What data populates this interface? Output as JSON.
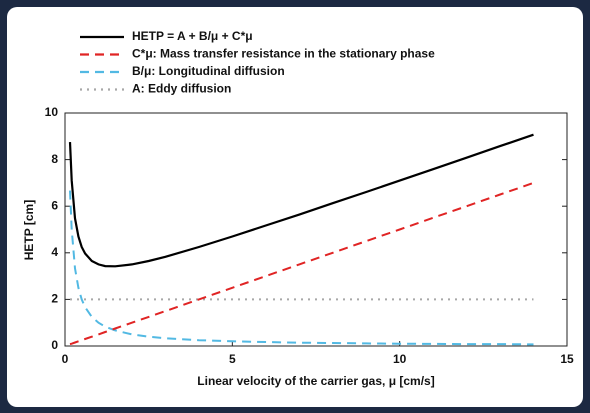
{
  "chart_data": {
    "type": "line",
    "xlabel": "Linear velocity of the carrier gas, μ [cm/s]",
    "ylabel": "HETP [cm]",
    "x": [
      0.15,
      0.2,
      0.3,
      0.4,
      0.5,
      0.6,
      0.8,
      1,
      1.2,
      1.5,
      2,
      2.5,
      3,
      4,
      5,
      6,
      7,
      8,
      9,
      10,
      11,
      12,
      13,
      14
    ],
    "series": [
      {
        "name": "HETP = A + B/μ + C*μ",
        "color": "#000000",
        "dash": "solid",
        "values": [
          8.75,
          7.1,
          5.48,
          4.7,
          4.25,
          3.97,
          3.65,
          3.5,
          3.43,
          3.42,
          3.5,
          3.65,
          3.83,
          4.25,
          4.7,
          5.17,
          5.64,
          6.13,
          6.61,
          7.1,
          7.59,
          8.08,
          8.58,
          9.07
        ]
      },
      {
        "name": "C*μ: Mass transfer resistance in the stationary phase",
        "color": "#e02424",
        "dash": "dashed",
        "values": [
          0.08,
          0.1,
          0.15,
          0.2,
          0.25,
          0.3,
          0.4,
          0.5,
          0.6,
          0.75,
          1,
          1.25,
          1.5,
          2,
          2.5,
          3,
          3.5,
          4,
          4.5,
          5,
          5.5,
          6,
          6.5,
          7
        ]
      },
      {
        "name": "B/μ: Longitudinal diffusion",
        "color": "#52b9e3",
        "dash": "dashed",
        "values": [
          6.67,
          5,
          3.33,
          2.5,
          2,
          1.67,
          1.25,
          1,
          0.83,
          0.67,
          0.5,
          0.4,
          0.33,
          0.25,
          0.2,
          0.17,
          0.14,
          0.13,
          0.11,
          0.1,
          0.09,
          0.08,
          0.08,
          0.07
        ]
      },
      {
        "name": "A: Eddy diffusion",
        "color": "#a8a8a8",
        "dash": "dotted",
        "values": [
          2,
          2,
          2,
          2,
          2,
          2,
          2,
          2,
          2,
          2,
          2,
          2,
          2,
          2,
          2,
          2,
          2,
          2,
          2,
          2,
          2,
          2,
          2,
          2
        ]
      }
    ],
    "xlim": [
      0,
      15
    ],
    "xticks": [
      0,
      5,
      10,
      15
    ],
    "ylim": [
      0,
      10
    ],
    "yticks": [
      0,
      2,
      4,
      6,
      8,
      10
    ],
    "grid": false,
    "legend": "top-left"
  }
}
